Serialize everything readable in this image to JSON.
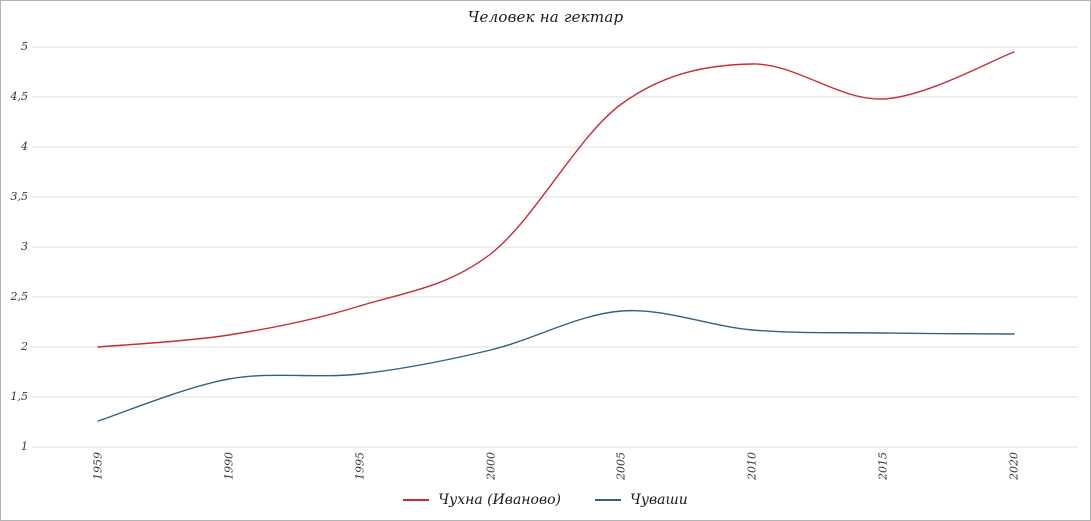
{
  "chart_data": {
    "type": "line",
    "title": "Человек на гектар",
    "xlabel": "",
    "ylabel": "",
    "categories": [
      "1959",
      "1990",
      "1995",
      "2000",
      "2005",
      "2010",
      "2015",
      "2020"
    ],
    "series": [
      {
        "name": "Чухна (Иваново)",
        "color": "#bf2f35",
        "values": [
          2.0,
          2.12,
          2.41,
          2.93,
          4.43,
          4.83,
          4.48,
          4.95
        ]
      },
      {
        "name": "Чуваши",
        "color": "#33617f",
        "values": [
          1.26,
          1.68,
          1.73,
          1.97,
          2.36,
          2.17,
          2.14,
          2.13
        ]
      }
    ],
    "ylim": [
      1,
      5
    ],
    "y_ticks": {
      "values": [
        5,
        4.5,
        4,
        3.5,
        3,
        2.5,
        2,
        1.5,
        1
      ],
      "labels": [
        "5",
        "4,5",
        "4",
        "3,5",
        "3",
        "2,5",
        "2",
        "1,5",
        "1"
      ]
    },
    "grid": "horizontal",
    "smoothed": true,
    "legend_position": "bottom"
  },
  "colors": {
    "gridline": "#dcdcdc",
    "frame_border": "#b3b3b3",
    "tick_text": "#333333",
    "title_text": "#1a1a1a"
  }
}
